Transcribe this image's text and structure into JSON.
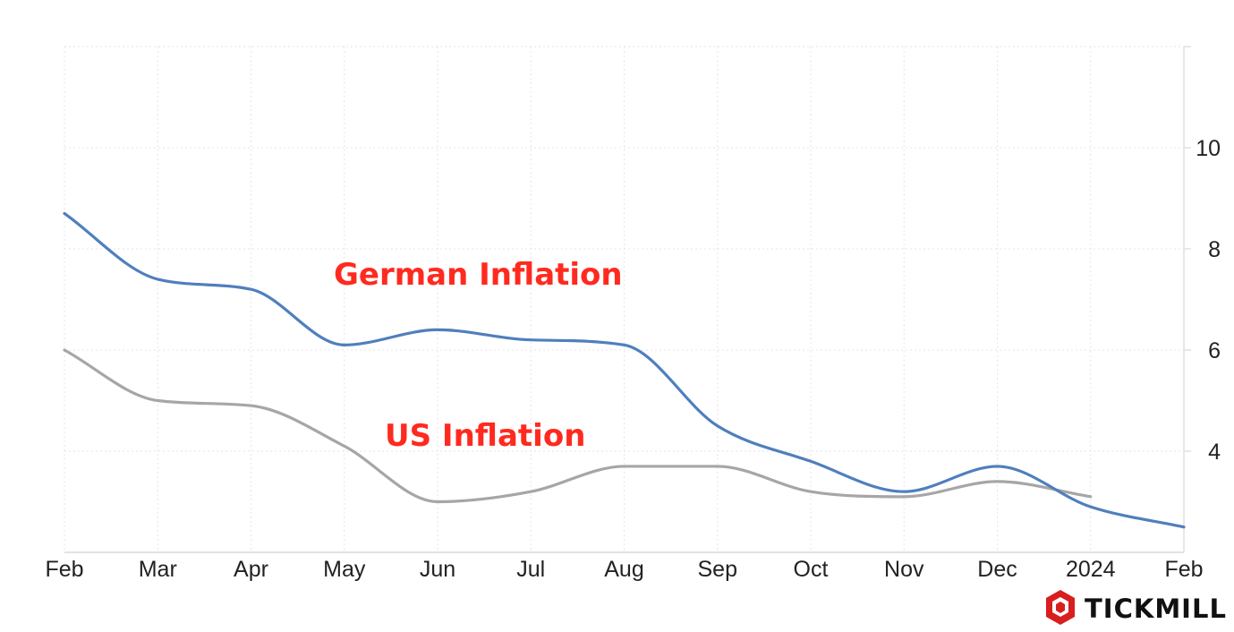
{
  "chart_data": {
    "type": "line",
    "categories": [
      "Feb",
      "Mar",
      "Apr",
      "May",
      "Jun",
      "Jul",
      "Aug",
      "Sep",
      "Oct",
      "Nov",
      "Dec",
      "2024",
      "Feb"
    ],
    "series": [
      {
        "name": "German Inflation",
        "color": "#4f7fbd",
        "values": [
          8.7,
          7.4,
          7.2,
          6.1,
          6.4,
          6.2,
          6.1,
          4.5,
          3.8,
          3.2,
          3.7,
          2.9,
          2.5
        ]
      },
      {
        "name": "US Inflation",
        "color": "#a6a6a6",
        "values": [
          6.0,
          5.0,
          4.9,
          4.1,
          3.0,
          3.2,
          3.7,
          3.7,
          3.2,
          3.1,
          3.4,
          3.1,
          null
        ]
      }
    ],
    "y_ticks": [
      "4",
      "6",
      "8",
      "10"
    ],
    "ylim": [
      2.0,
      12.0
    ],
    "grid": true,
    "y_axis_side": "right",
    "annotations": [
      {
        "text": "German Inflation",
        "series": "German Inflation",
        "color": "#ff2a1f"
      },
      {
        "text": "US Inflation",
        "series": "US Inflation",
        "color": "#ff2a1f"
      }
    ]
  },
  "logo": {
    "text": "TICKMILL",
    "icon": "tickmill-logo-icon",
    "accent_color": "#d81e1e"
  }
}
